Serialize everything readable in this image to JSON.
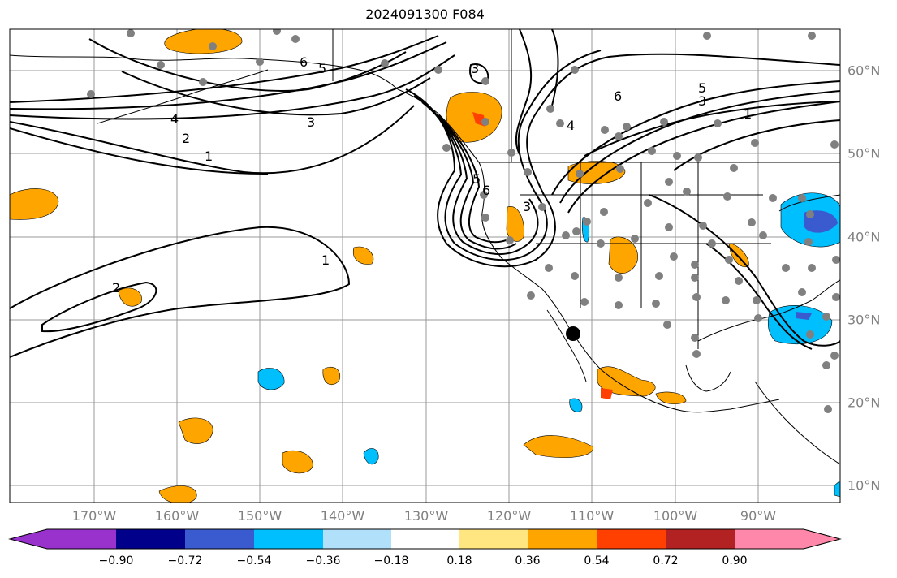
{
  "title": "2024091300 F084",
  "lon_labels": [
    "170°W",
    "160°W",
    "150°W",
    "140°W",
    "130°W",
    "120°W",
    "110°W",
    "100°W",
    "90°W"
  ],
  "lat_labels": [
    "60°N",
    "50°N",
    "40°N",
    "30°N",
    "20°N",
    "10°N"
  ],
  "colorbar": {
    "ticks": [
      "−0.90",
      "−0.72",
      "−0.54",
      "−0.36",
      "−0.18",
      "0.18",
      "0.36",
      "0.54",
      "0.72",
      "0.90"
    ],
    "colors": [
      "#9932cc",
      "#00008b",
      "#3a5bd0",
      "#00bfff",
      "#b0e0fa",
      "#ffffff",
      "#ffe680",
      "#ffa500",
      "#ff4000",
      "#b22222",
      "#ff88aa"
    ]
  },
  "contour_labels": [
    "6",
    "5",
    "4",
    "3",
    "2",
    "1",
    "3",
    "6",
    "5",
    "3",
    "1",
    "4",
    "3",
    "6",
    "5",
    "1",
    "2"
  ],
  "colors": {
    "positive_shade": "#ffa500",
    "negative_shade": "#00bfff",
    "strong_negative": "#3a5bd0",
    "strong_positive": "#ff4000",
    "station_dot": "#808080",
    "grid": "#999999"
  }
}
